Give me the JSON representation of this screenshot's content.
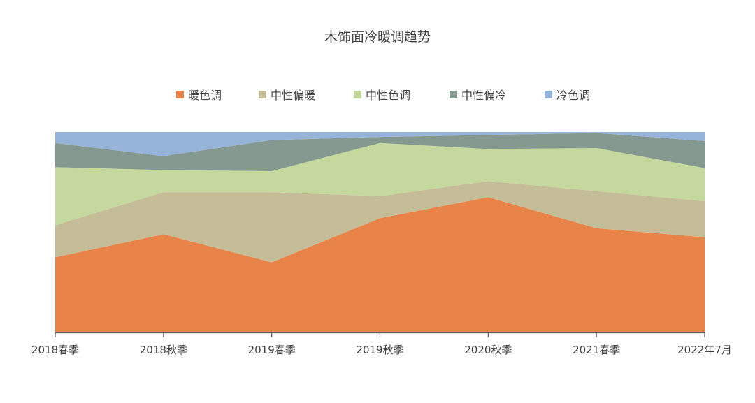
{
  "chart_data": {
    "type": "area",
    "stacked": "percent",
    "title": "木饰面冷暖调趋势",
    "legend_position": "top",
    "grid": false,
    "categories": [
      "2018春季",
      "2018秋季",
      "2019春季",
      "2019秋季",
      "2020秋季",
      "2021春季",
      "2022年7月"
    ],
    "ylim": [
      0,
      100
    ],
    "series": [
      {
        "name": "暖色调",
        "color": "#E8834A",
        "values": [
          37.5,
          49.0,
          35.0,
          57.0,
          67.5,
          52.0,
          47.5
        ]
      },
      {
        "name": "中性偏暖",
        "color": "#C5BD97",
        "values": [
          16.0,
          21.0,
          35.0,
          11.0,
          8.0,
          18.5,
          18.0
        ]
      },
      {
        "name": "中性色调",
        "color": "#C5D89D",
        "values": [
          29.0,
          11.0,
          10.5,
          26.5,
          16.0,
          21.5,
          16.5
        ]
      },
      {
        "name": "中性偏冷",
        "color": "#869991",
        "values": [
          12.0,
          7.0,
          15.5,
          3.0,
          7.0,
          7.5,
          13.5
        ]
      },
      {
        "name": "冷色调",
        "color": "#96B3DA",
        "values": [
          5.5,
          12.0,
          4.0,
          2.5,
          1.5,
          0.5,
          4.5
        ]
      }
    ]
  }
}
